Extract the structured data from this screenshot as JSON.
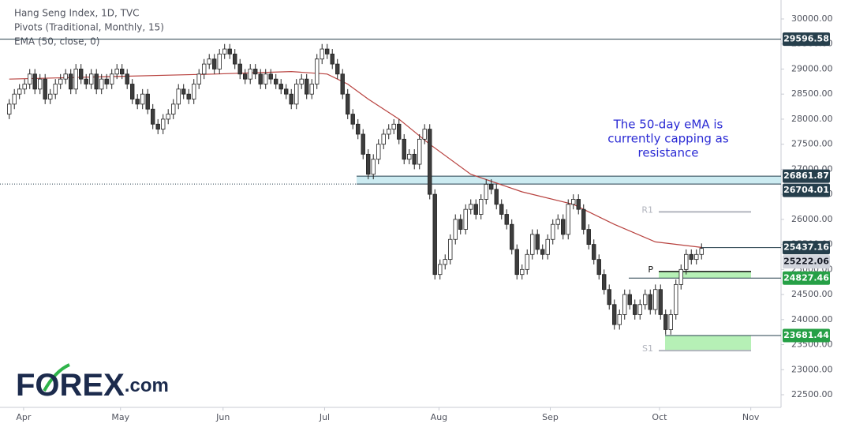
{
  "chart_data": {
    "type": "candlestick",
    "legend_lines": [
      "Hang Seng Index, 1D, TVC",
      "Pivots (Traditional, Monthly, 15)",
      "EMA (50, close, 0)"
    ],
    "annotation": [
      "The 50-day eMA is",
      "currently capping as",
      "resistance"
    ],
    "logo": {
      "main": "FOREX",
      "suffix": ".com"
    },
    "ylim": [
      22248,
      30378
    ],
    "yticks": [
      {
        "value": 22500,
        "label": "22500.00"
      },
      {
        "value": 23000,
        "label": "23000.00"
      },
      {
        "value": 23500,
        "label": "23500.00"
      },
      {
        "value": 24000,
        "label": "24000.00"
      },
      {
        "value": 24500,
        "label": "24500.00"
      },
      {
        "value": 25000,
        "label": "25000.00"
      },
      {
        "value": 25500,
        "label": "25500.00"
      },
      {
        "value": 26000,
        "label": "26000.00"
      },
      {
        "value": 26500,
        "label": "26500.00"
      },
      {
        "value": 27000,
        "label": "27000.00"
      },
      {
        "value": 27500,
        "label": "27500.00"
      },
      {
        "value": 28000,
        "label": "28000.00"
      },
      {
        "value": 28500,
        "label": "28500.00"
      },
      {
        "value": 29000,
        "label": "29000.00"
      },
      {
        "value": 29500,
        "label": "29500.00"
      },
      {
        "value": 30000,
        "label": "30000.00"
      }
    ],
    "xlim": [
      -1.8,
      150.5
    ],
    "xticks": [
      {
        "value": 2.8,
        "label": "Apr"
      },
      {
        "value": 21.7,
        "label": "May"
      },
      {
        "value": 41.7,
        "label": "Jun"
      },
      {
        "value": 61.5,
        "label": "Jul"
      },
      {
        "value": 83.8,
        "label": "Aug"
      },
      {
        "value": 105.5,
        "label": "Sep"
      },
      {
        "value": 126.8,
        "label": "Oct"
      },
      {
        "value": 144.6,
        "label": "Nov"
      }
    ],
    "grid": false,
    "up_color": "#ffffff",
    "down_color": "#3d3d3d",
    "edge_color": "#222222",
    "candles": {
      "open": [
        28100,
        28300,
        28500,
        28600,
        28700,
        28900,
        28600,
        28800,
        28400,
        28500,
        28700,
        28800,
        28900,
        28600,
        29000,
        28800,
        28700,
        28900,
        28600,
        28800,
        28700,
        28900,
        29000,
        28900,
        28700,
        28400,
        28300,
        28500,
        28200,
        27900,
        27800,
        28000,
        28100,
        28300,
        28600,
        28500,
        28400,
        28700,
        28900,
        29100,
        29200,
        29000,
        29300,
        29400,
        29300,
        29100,
        28900,
        28800,
        29000,
        28900,
        28700,
        28900,
        28800,
        28700,
        28600,
        28500,
        28300,
        28700,
        28800,
        28500,
        28700,
        29200,
        29400,
        29300,
        29100,
        28900,
        28500,
        28100,
        27900,
        27700,
        27300,
        26900,
        27200,
        27500,
        27700,
        27800,
        27900,
        27600,
        27200,
        27300,
        27100,
        27600,
        27800,
        26500,
        24900,
        25100,
        25200,
        25600,
        26000,
        25800,
        26200,
        26300,
        26100,
        26400,
        26700,
        26600,
        26300,
        26100,
        25900,
        25400,
        24900,
        25000,
        25300,
        25700,
        25400,
        25300,
        25600,
        25900,
        26000,
        25700,
        26300,
        26400,
        26200,
        25800,
        25500,
        25200,
        24900,
        24600,
        24300,
        23900,
        24100,
        24500,
        24300,
        24100,
        24300,
        24500,
        24200,
        24600,
        24100,
        23800,
        24100,
        24700,
        25000,
        25300,
        25200,
        25300
      ],
      "high": [
        28400,
        28600,
        28700,
        28800,
        29000,
        29000,
        28900,
        28900,
        28600,
        28800,
        28900,
        29000,
        29000,
        29100,
        29100,
        28900,
        29000,
        29000,
        28900,
        28900,
        29000,
        29100,
        29100,
        29000,
        28800,
        28500,
        28600,
        28600,
        28300,
        28000,
        28100,
        28200,
        28400,
        28700,
        28700,
        28600,
        28800,
        29000,
        29200,
        29300,
        29300,
        29400,
        29500,
        29500,
        29400,
        29200,
        29000,
        29100,
        29100,
        29000,
        29000,
        29000,
        28900,
        28800,
        28700,
        28600,
        28800,
        28900,
        28900,
        28800,
        29300,
        29500,
        29500,
        29400,
        29200,
        29000,
        28600,
        28200,
        28000,
        27800,
        27400,
        27300,
        27600,
        27800,
        27900,
        28000,
        28000,
        27700,
        27400,
        27400,
        27700,
        27900,
        27900,
        26600,
        25200,
        25300,
        25700,
        26100,
        26100,
        26300,
        26400,
        26400,
        26500,
        26800,
        26800,
        26700,
        26400,
        26200,
        26000,
        25500,
        25100,
        25400,
        25800,
        25800,
        25500,
        25700,
        26000,
        26100,
        26100,
        26400,
        26500,
        26500,
        26300,
        25900,
        25600,
        25300,
        25000,
        24700,
        24400,
        24200,
        24600,
        24600,
        24400,
        24400,
        24600,
        24600,
        24700,
        24700,
        24200,
        24200,
        24800,
        25100,
        25400,
        25400,
        25400,
        25520
      ],
      "low": [
        28000,
        28200,
        28400,
        28500,
        28600,
        28500,
        28500,
        28300,
        28300,
        28400,
        28600,
        28700,
        28500,
        28500,
        28700,
        28600,
        28600,
        28500,
        28500,
        28600,
        28600,
        28800,
        28800,
        28600,
        28300,
        28200,
        28200,
        28100,
        27800,
        27700,
        27700,
        27900,
        28000,
        28200,
        28400,
        28300,
        28300,
        28600,
        28800,
        29000,
        28900,
        28900,
        29200,
        29200,
        29000,
        28800,
        28700,
        28700,
        28800,
        28600,
        28600,
        28700,
        28600,
        28500,
        28400,
        28200,
        28200,
        28600,
        28400,
        28400,
        28600,
        29100,
        29200,
        29000,
        28800,
        28400,
        28000,
        27800,
        27600,
        27200,
        26800,
        26800,
        27100,
        27400,
        27600,
        27700,
        27500,
        27100,
        27100,
        27000,
        27000,
        27500,
        26400,
        24800,
        24800,
        25000,
        25100,
        25500,
        25700,
        25700,
        26100,
        26000,
        26000,
        26300,
        26500,
        26200,
        26000,
        25800,
        25300,
        24800,
        24800,
        24900,
        25200,
        25300,
        25200,
        25200,
        25500,
        25800,
        25600,
        25600,
        26200,
        26100,
        25700,
        25400,
        25100,
        24800,
        24500,
        24200,
        23800,
        23800,
        24000,
        24200,
        24000,
        24000,
        24200,
        24100,
        24100,
        24000,
        23700,
        23700,
        24000,
        24600,
        24900,
        25100,
        25100,
        25200
      ],
      "close": [
        28300,
        28500,
        28600,
        28700,
        28900,
        28600,
        28800,
        28400,
        28500,
        28700,
        28800,
        28900,
        28600,
        29000,
        28800,
        28700,
        28900,
        28600,
        28800,
        28700,
        28900,
        29000,
        28900,
        28700,
        28400,
        28300,
        28500,
        28200,
        27900,
        27800,
        28000,
        28100,
        28300,
        28600,
        28500,
        28400,
        28700,
        28900,
        29100,
        29200,
        29000,
        29300,
        29400,
        29300,
        29100,
        28900,
        28800,
        29000,
        28900,
        28700,
        28900,
        28800,
        28700,
        28600,
        28500,
        28300,
        28700,
        28800,
        28500,
        28700,
        29200,
        29400,
        29300,
        29100,
        28900,
        28500,
        28100,
        27900,
        27700,
        27300,
        26900,
        27200,
        27500,
        27700,
        27800,
        27900,
        27600,
        27200,
        27300,
        27100,
        27600,
        27800,
        26500,
        24900,
        25100,
        25200,
        25600,
        26000,
        25800,
        26200,
        26300,
        26100,
        26400,
        26700,
        26600,
        26300,
        26100,
        25900,
        25400,
        24900,
        25000,
        25300,
        25700,
        25400,
        25300,
        25600,
        25900,
        26000,
        25700,
        26300,
        26400,
        26200,
        25800,
        25500,
        25200,
        24900,
        24600,
        24300,
        23900,
        24100,
        24500,
        24300,
        24100,
        24300,
        24500,
        24200,
        24600,
        24100,
        23800,
        24100,
        24700,
        25000,
        25300,
        25200,
        25300,
        25420
      ]
    },
    "ema": {
      "color": "#b8423f",
      "x": [
        0,
        20,
        40,
        55,
        62,
        66,
        70,
        76,
        82,
        90,
        100,
        110,
        118,
        126,
        135
      ],
      "values": [
        28800,
        28850,
        28900,
        28950,
        28900,
        28700,
        28400,
        28000,
        27500,
        26900,
        26550,
        26300,
        25900,
        25550,
        25440
      ]
    },
    "price_lines": [
      {
        "value": 29596.58,
        "color": "#263f4c"
      },
      {
        "value": 26861.87,
        "color": "#263f4c"
      },
      {
        "value": 26704.01,
        "color": "#263f4c"
      },
      {
        "value": 25437.16,
        "color": "#263f4c"
      },
      {
        "value": 25222.06,
        "color": "#d1d4dc"
      },
      {
        "value": 24827.46,
        "color": "#26a046"
      },
      {
        "value": 23681.44,
        "color": "#26a046"
      }
    ],
    "pivots": [
      {
        "name": "R1",
        "value": 26150
      },
      {
        "name": "P",
        "value": 24960
      },
      {
        "name": "S1",
        "value": 23380
      }
    ]
  }
}
